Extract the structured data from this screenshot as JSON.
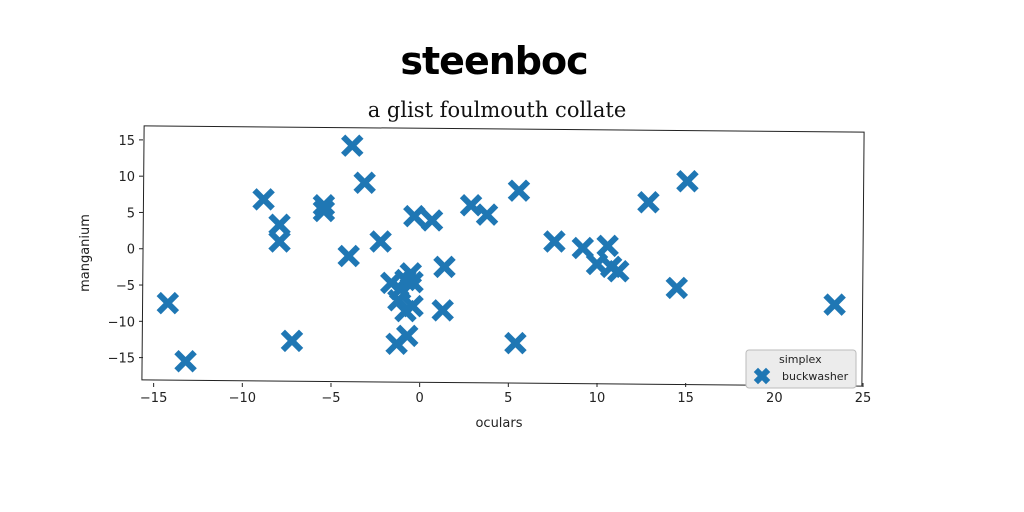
{
  "chart_data": {
    "type": "scatter",
    "title": "steenboc",
    "subtitle": "a glist foulmouth collate",
    "xlabel": "oculars",
    "ylabel": "manganium",
    "xlim": [
      -15.6,
      25
    ],
    "ylim": [
      -18.5,
      16.5
    ],
    "xticks": [
      -15,
      -10,
      -5,
      0,
      5,
      10,
      15,
      20,
      25
    ],
    "yticks": [
      15,
      10,
      5,
      0,
      -5,
      -10,
      -15
    ],
    "grid": false,
    "legend_position": "bottom-right",
    "legend": [
      "simplex",
      "buckwasher"
    ],
    "marker": "x-filled",
    "color": "#1f77b4",
    "series": [
      {
        "name": "buckwasher",
        "points": [
          [
            -14.2,
            -7.5
          ],
          [
            -13.2,
            -15.5
          ],
          [
            -8.8,
            6.8
          ],
          [
            -7.9,
            3.3
          ],
          [
            -7.9,
            1.0
          ],
          [
            -7.2,
            -12.7
          ],
          [
            -5.4,
            6.0
          ],
          [
            -5.4,
            5.2
          ],
          [
            -3.8,
            14.2
          ],
          [
            -4.0,
            -1.0
          ],
          [
            -3.1,
            9.1
          ],
          [
            -2.2,
            1.0
          ],
          [
            -1.6,
            -4.7
          ],
          [
            -1.3,
            -13.1
          ],
          [
            -1.1,
            -5.6
          ],
          [
            -1.2,
            -7.1
          ],
          [
            -0.8,
            -4.3
          ],
          [
            -0.8,
            -8.6
          ],
          [
            -0.7,
            -12.0
          ],
          [
            -0.4,
            -4.6
          ],
          [
            -0.5,
            -3.4
          ],
          [
            -0.4,
            -7.9
          ],
          [
            -0.3,
            4.5
          ],
          [
            0.7,
            3.9
          ],
          [
            1.4,
            -2.5
          ],
          [
            1.3,
            -8.5
          ],
          [
            2.9,
            6.0
          ],
          [
            3.8,
            4.7
          ],
          [
            5.6,
            8.0
          ],
          [
            5.4,
            -13.0
          ],
          [
            7.6,
            1.0
          ],
          [
            9.2,
            0.1
          ],
          [
            10.0,
            -2.1
          ],
          [
            10.6,
            0.4
          ],
          [
            10.8,
            -2.5
          ],
          [
            11.2,
            -3.1
          ],
          [
            12.9,
            6.4
          ],
          [
            14.5,
            -5.4
          ],
          [
            15.1,
            9.3
          ],
          [
            23.4,
            -7.7
          ]
        ]
      }
    ]
  }
}
